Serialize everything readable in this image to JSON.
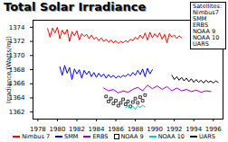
{
  "chart_data": {
    "type": "line",
    "title": "Total Solar Irradiance",
    "y_label": "Irradiance (Watts/m²)",
    "legend_box": {
      "title": "Satellites:",
      "items": [
        "Nimbus7",
        "SMM",
        "ERBS",
        "NOAA 9",
        "NOAA 10",
        "UARS"
      ]
    },
    "xlim": [
      1977.5,
      1997
    ],
    "xticks": [
      1978,
      1980,
      1982,
      1984,
      1986,
      1988,
      1990,
      1992,
      1994,
      1996
    ],
    "ylim": [
      1361,
      1375
    ],
    "yticks": [
      1362,
      1364,
      1366,
      1368,
      1370,
      1372,
      1374
    ],
    "grid": false,
    "legend": "bottom",
    "series": [
      {
        "name": "Nimbus 7",
        "color": "#ff0000",
        "type": "line",
        "x": [
          1979.0,
          1979.25,
          1979.5,
          1979.75,
          1980.0,
          1980.25,
          1980.5,
          1980.75,
          1981.0,
          1981.25,
          1981.5,
          1981.75,
          1982.0,
          1982.25,
          1982.5,
          1982.75,
          1983.0,
          1983.25,
          1983.5,
          1983.75,
          1984.0,
          1984.25,
          1984.5,
          1984.75,
          1985.0,
          1985.25,
          1985.5,
          1985.75,
          1986.0,
          1986.25,
          1986.5,
          1986.75,
          1987.0,
          1987.25,
          1987.5,
          1987.75,
          1988.0,
          1988.25,
          1988.5,
          1988.75,
          1989.0,
          1989.25,
          1989.5,
          1989.75,
          1990.0,
          1990.25,
          1990.5,
          1990.75,
          1991.0,
          1991.25,
          1991.5,
          1991.75,
          1992.0,
          1992.25,
          1992.5,
          1992.75
        ],
        "values": [
          1373.8,
          1372.6,
          1373.9,
          1373.2,
          1374.0,
          1372.4,
          1373.6,
          1373.0,
          1373.7,
          1372.0,
          1373.4,
          1372.8,
          1373.5,
          1372.2,
          1373.1,
          1372.7,
          1373.0,
          1372.4,
          1372.9,
          1372.3,
          1372.6,
          1372.1,
          1372.5,
          1372.0,
          1372.3,
          1371.9,
          1372.2,
          1371.8,
          1372.1,
          1371.7,
          1372.0,
          1371.8,
          1372.1,
          1371.9,
          1372.3,
          1372.1,
          1372.6,
          1372.3,
          1372.9,
          1372.4,
          1373.2,
          1372.2,
          1373.3,
          1372.5,
          1373.1,
          1372.6,
          1373.2,
          1372.3,
          1373.0,
          1371.8,
          1373.1,
          1372.6,
          1372.9,
          1372.4,
          1372.8,
          1372.5
        ]
      },
      {
        "name": "SMM",
        "color": "#0000ff",
        "type": "line",
        "x": [
          1980.25,
          1980.5,
          1980.75,
          1981.0,
          1981.25,
          1981.5,
          1981.75,
          1982.0,
          1982.25,
          1982.5,
          1982.75,
          1983.0,
          1983.25,
          1983.5,
          1983.75,
          1984.0,
          1984.25,
          1984.5,
          1984.75,
          1985.0,
          1985.25,
          1985.5,
          1985.75,
          1986.0,
          1986.25,
          1986.5,
          1986.75,
          1987.0,
          1987.25,
          1987.5,
          1987.75,
          1988.0,
          1988.25,
          1988.5,
          1988.75,
          1989.0,
          1989.25,
          1989.5,
          1989.75
        ],
        "values": [
          1368.4,
          1367.2,
          1368.6,
          1367.5,
          1368.3,
          1366.6,
          1368.1,
          1367.4,
          1368.0,
          1366.8,
          1367.9,
          1367.3,
          1367.8,
          1367.0,
          1367.6,
          1366.9,
          1367.5,
          1367.0,
          1367.4,
          1366.8,
          1367.3,
          1366.9,
          1367.2,
          1366.8,
          1367.1,
          1366.9,
          1367.2,
          1367.0,
          1367.4,
          1367.1,
          1367.6,
          1367.2,
          1367.9,
          1367.3,
          1368.1,
          1367.0,
          1368.2,
          1367.4,
          1368.0
        ]
      },
      {
        "name": "ERBS",
        "color": "#9900cc",
        "type": "line",
        "x": [
          1984.75,
          1985.25,
          1985.75,
          1986.25,
          1986.75,
          1987.25,
          1987.75,
          1988.25,
          1988.75,
          1989.25,
          1989.75,
          1990.25,
          1990.75,
          1991.25,
          1991.75,
          1992.25,
          1992.75,
          1993.25,
          1993.75,
          1994.25,
          1994.75,
          1995.25,
          1995.75
        ],
        "values": [
          1365.4,
          1365.0,
          1365.2,
          1364.7,
          1365.0,
          1364.8,
          1365.2,
          1365.5,
          1365.0,
          1365.8,
          1365.3,
          1365.7,
          1365.2,
          1365.6,
          1365.0,
          1365.4,
          1365.0,
          1365.2,
          1364.9,
          1365.1,
          1364.8,
          1365.0,
          1364.9
        ]
      },
      {
        "name": "NOAA 9",
        "color": "#000000",
        "type": "scatter",
        "marker": "square",
        "x": [
          1985.0,
          1985.25,
          1985.5,
          1985.75,
          1986.0,
          1986.25,
          1986.5,
          1986.75,
          1987.0,
          1987.25,
          1987.5,
          1987.75,
          1988.0,
          1988.25,
          1988.5,
          1988.75,
          1989.0
        ],
        "values": [
          1364.2,
          1363.5,
          1363.9,
          1363.2,
          1363.6,
          1362.9,
          1363.3,
          1363.8,
          1363.1,
          1363.5,
          1362.8,
          1363.4,
          1363.9,
          1363.3,
          1364.1,
          1363.6,
          1364.4
        ]
      },
      {
        "name": "NOAA 10",
        "color": "#00cccc",
        "type": "line",
        "x": [
          1987.0,
          1987.25,
          1987.5,
          1987.75,
          1988.0,
          1988.25,
          1988.5,
          1988.75,
          1989.0
        ],
        "values": [
          1362.6,
          1362.9,
          1362.5,
          1362.8,
          1362.4,
          1362.9,
          1362.6,
          1363.0,
          1362.7
        ]
      },
      {
        "name": "UARS",
        "color": "#000000",
        "type": "line",
        "x": [
          1991.75,
          1992.0,
          1992.25,
          1992.5,
          1992.75,
          1993.0,
          1993.25,
          1993.5,
          1993.75,
          1994.0,
          1994.25,
          1994.5,
          1994.75,
          1995.0,
          1995.25,
          1995.5,
          1995.75,
          1996.0,
          1996.25,
          1996.5
        ],
        "values": [
          1367.2,
          1366.6,
          1367.0,
          1366.5,
          1366.9,
          1366.4,
          1366.8,
          1366.3,
          1366.7,
          1366.2,
          1366.6,
          1366.2,
          1366.5,
          1366.1,
          1366.5,
          1366.2,
          1366.4,
          1366.1,
          1366.4,
          1366.2
        ]
      }
    ]
  }
}
